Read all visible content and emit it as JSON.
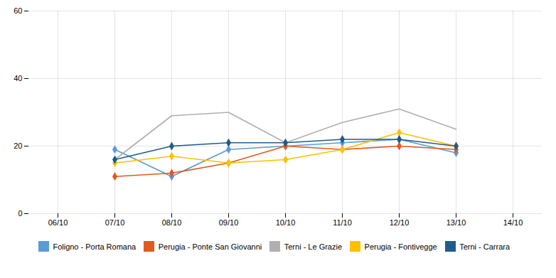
{
  "chart_data": {
    "type": "line",
    "categories": [
      "06/10",
      "07/10",
      "08/10",
      "09/10",
      "10/10",
      "11/10",
      "12/10",
      "13/10",
      "14/10"
    ],
    "series": [
      {
        "name": "Foligno - Porta Romana",
        "color": "#5b9bd5",
        "marker": "diamond",
        "values": [
          null,
          19,
          11,
          19,
          20,
          21,
          22,
          18,
          null
        ]
      },
      {
        "name": "Perugia - Ponte San Giovanni",
        "color": "#e05a1e",
        "marker": "diamond",
        "values": [
          null,
          11,
          12,
          15,
          20,
          19,
          20,
          19,
          null
        ]
      },
      {
        "name": "Terni - Le Grazie",
        "color": "#b0b0b0",
        "values": [
          null,
          16,
          29,
          30,
          21,
          27,
          31,
          25,
          null
        ]
      },
      {
        "name": "Perugia - Fontivegge",
        "color": "#ffc000",
        "marker": "diamond",
        "values": [
          null,
          15,
          17,
          15,
          16,
          19,
          24,
          20,
          null
        ]
      },
      {
        "name": "Terni - Carrara",
        "color": "#1f5c8b",
        "marker": "diamond",
        "values": [
          null,
          16,
          20,
          21,
          21,
          22,
          22,
          20,
          null
        ]
      }
    ],
    "ylim": [
      0,
      60
    ],
    "yticks": [
      0,
      20,
      40,
      60
    ],
    "grid": true,
    "legend": "bottom"
  }
}
